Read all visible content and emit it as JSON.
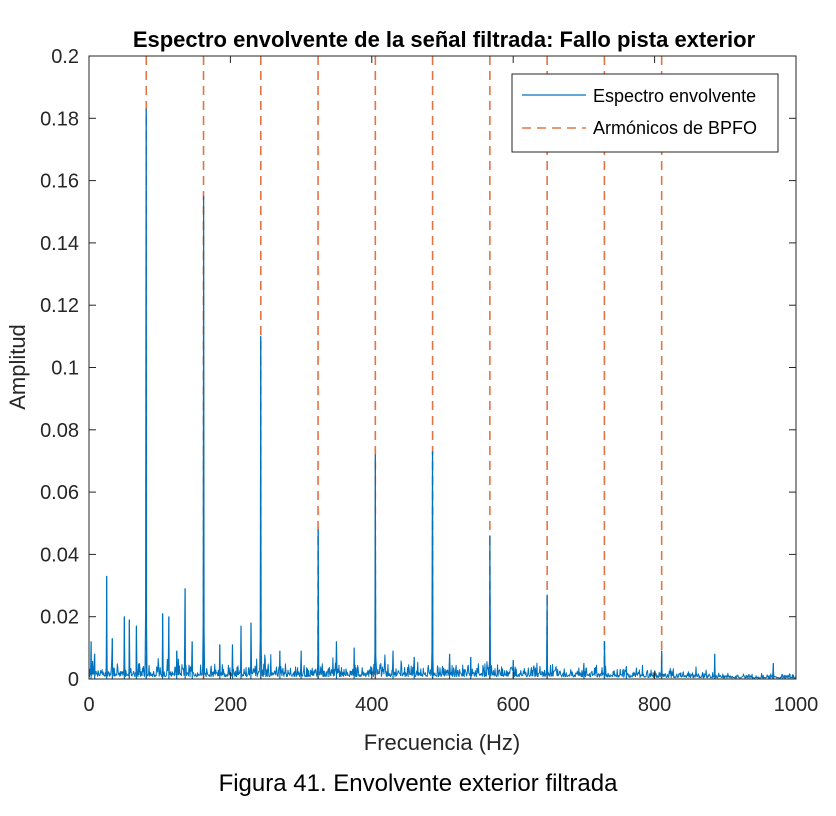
{
  "chart_data": {
    "type": "line",
    "title": "Espectro envolvente de la señal filtrada: Fallo pista exterior",
    "xlabel": "Frecuencia (Hz)",
    "ylabel": "Amplitud",
    "xlim": [
      0,
      1000
    ],
    "ylim": [
      0,
      0.2
    ],
    "x_ticks": [
      0,
      200,
      400,
      600,
      800,
      1000
    ],
    "x_tick_labels": [
      "0",
      "200",
      "400",
      "600",
      "800",
      "1000"
    ],
    "y_ticks": [
      0,
      0.02,
      0.04,
      0.06,
      0.08,
      0.1,
      0.12,
      0.14,
      0.16,
      0.18,
      0.2
    ],
    "y_tick_labels": [
      "0",
      "0.02",
      "0.04",
      "0.06",
      "0.08",
      "0.1",
      "0.12",
      "0.14",
      "0.16",
      "0.18",
      "0.2"
    ],
    "grid": false,
    "legend_position": "top-right",
    "series": [
      {
        "name": "Espectro envolvente",
        "style": "solid",
        "color": "#0072BD",
        "baseline_level": 0.003,
        "peaks": [
          {
            "x": 3,
            "y": 0.012
          },
          {
            "x": 8,
            "y": 0.008
          },
          {
            "x": 25,
            "y": 0.033
          },
          {
            "x": 33,
            "y": 0.013
          },
          {
            "x": 50,
            "y": 0.02
          },
          {
            "x": 57,
            "y": 0.019
          },
          {
            "x": 67,
            "y": 0.017
          },
          {
            "x": 81,
            "y": 0.183
          },
          {
            "x": 104,
            "y": 0.021
          },
          {
            "x": 113,
            "y": 0.02
          },
          {
            "x": 124,
            "y": 0.009
          },
          {
            "x": 136,
            "y": 0.029
          },
          {
            "x": 146,
            "y": 0.012
          },
          {
            "x": 162,
            "y": 0.155
          },
          {
            "x": 185,
            "y": 0.011
          },
          {
            "x": 203,
            "y": 0.011
          },
          {
            "x": 215,
            "y": 0.017
          },
          {
            "x": 229,
            "y": 0.018
          },
          {
            "x": 243,
            "y": 0.11
          },
          {
            "x": 270,
            "y": 0.009
          },
          {
            "x": 300,
            "y": 0.009
          },
          {
            "x": 324,
            "y": 0.048
          },
          {
            "x": 350,
            "y": 0.012
          },
          {
            "x": 375,
            "y": 0.01
          },
          {
            "x": 405,
            "y": 0.072
          },
          {
            "x": 430,
            "y": 0.009
          },
          {
            "x": 460,
            "y": 0.007
          },
          {
            "x": 486,
            "y": 0.073
          },
          {
            "x": 510,
            "y": 0.008
          },
          {
            "x": 540,
            "y": 0.007
          },
          {
            "x": 567,
            "y": 0.046
          },
          {
            "x": 600,
            "y": 0.006
          },
          {
            "x": 648,
            "y": 0.027
          },
          {
            "x": 700,
            "y": 0.005
          },
          {
            "x": 729,
            "y": 0.012
          },
          {
            "x": 760,
            "y": 0.004
          },
          {
            "x": 810,
            "y": 0.009
          },
          {
            "x": 885,
            "y": 0.008
          },
          {
            "x": 968,
            "y": 0.005
          }
        ]
      },
      {
        "name": "Armónicos de BPFO",
        "style": "dashed",
        "color": "#D95319",
        "x_values": [
          81,
          162,
          243,
          324,
          405,
          486,
          567,
          648,
          729,
          810
        ]
      }
    ]
  },
  "caption": "Figura 41. Envolvente exterior filtrada"
}
